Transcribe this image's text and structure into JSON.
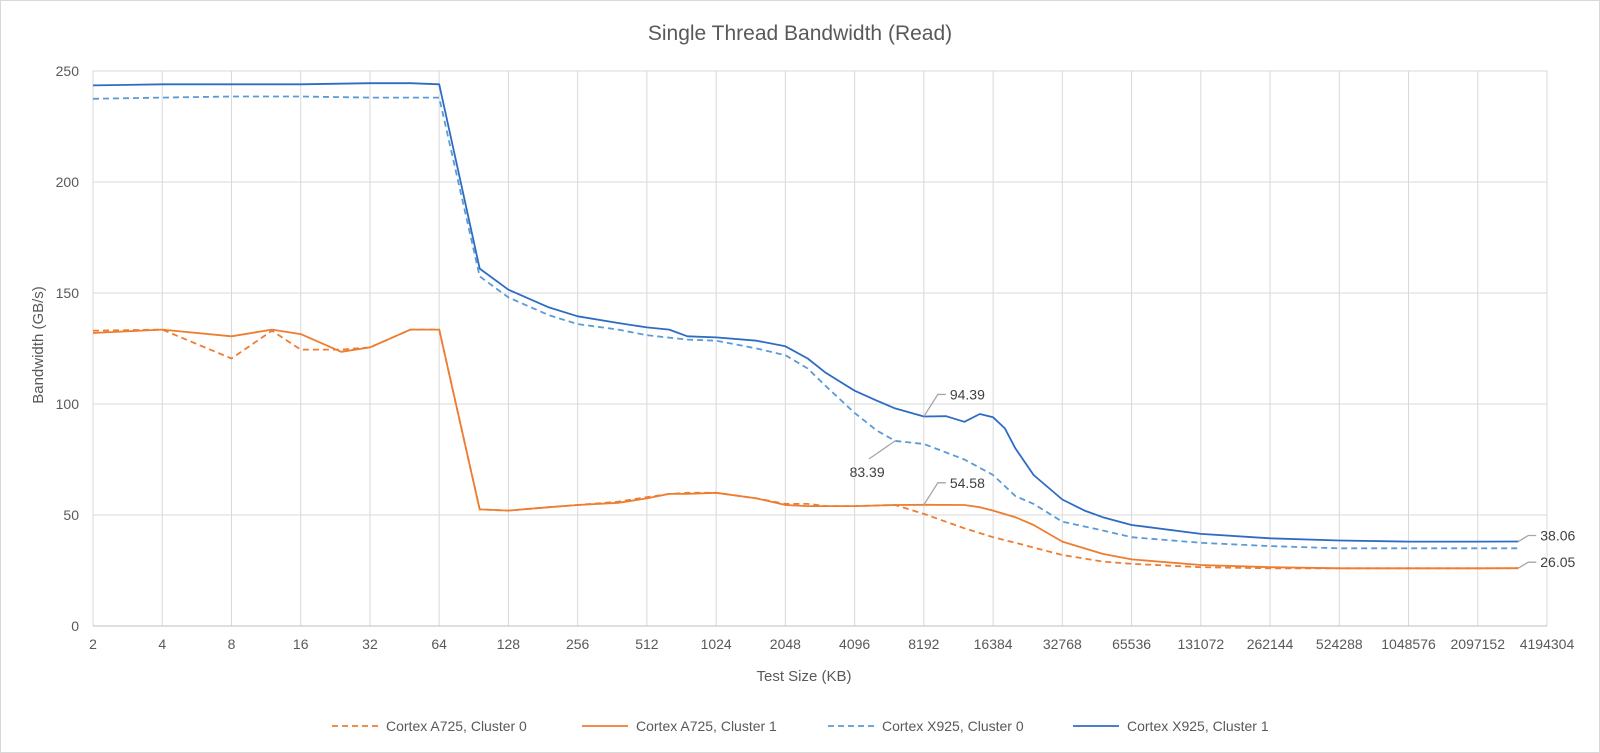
{
  "chart_data": {
    "type": "line",
    "title": "Single Thread Bandwidth (Read)",
    "xlabel": "Test Size (KB)",
    "ylabel": "Bandwidth (GB/s)",
    "x_scale": "log2",
    "xlim": [
      2,
      4194304
    ],
    "ylim": [
      0,
      250
    ],
    "y_ticks": [
      0,
      50,
      100,
      150,
      200,
      250
    ],
    "x_tick_labels": [
      "2",
      "4",
      "8",
      "16",
      "32",
      "64",
      "128",
      "256",
      "512",
      "1024",
      "2048",
      "4096",
      "8192",
      "16384",
      "32768",
      "65536",
      "131072",
      "262144",
      "524288",
      "1048576",
      "2097152",
      "4194304"
    ],
    "grid": true,
    "legend_position": "bottom",
    "series": [
      {
        "name": "Cortex A725, Cluster  0",
        "color": "#ED7D31",
        "dash": "dashed",
        "points": [
          [
            2,
            133
          ],
          [
            4,
            133.5
          ],
          [
            8,
            120.5
          ],
          [
            12,
            133
          ],
          [
            16,
            124.5
          ],
          [
            24,
            124.5
          ],
          [
            32,
            125.5
          ],
          [
            48,
            133.5
          ],
          [
            64,
            133.5
          ],
          [
            96,
            52.5
          ],
          [
            128,
            52
          ],
          [
            192,
            53.5
          ],
          [
            256,
            54.5
          ],
          [
            384,
            56
          ],
          [
            512,
            58
          ],
          [
            640,
            59.5
          ],
          [
            768,
            60
          ],
          [
            1024,
            60
          ],
          [
            1536,
            57.5
          ],
          [
            2048,
            55
          ],
          [
            2560,
            55
          ],
          [
            3072,
            54
          ],
          [
            4096,
            54
          ],
          [
            6144,
            54.5
          ],
          [
            8192,
            50.5
          ],
          [
            12288,
            44
          ],
          [
            16384,
            40
          ],
          [
            20480,
            37.5
          ],
          [
            32768,
            32
          ],
          [
            49152,
            29
          ],
          [
            65536,
            28
          ],
          [
            131072,
            26.5
          ],
          [
            262144,
            26
          ],
          [
            524288,
            26
          ],
          [
            1048576,
            26
          ],
          [
            2097152,
            26
          ],
          [
            3145728,
            26.05
          ]
        ]
      },
      {
        "name": "Cortex A725, Cluster 1",
        "color": "#ED7D31",
        "dash": "solid",
        "points": [
          [
            2,
            132
          ],
          [
            4,
            133.5
          ],
          [
            8,
            130.5
          ],
          [
            12,
            133.5
          ],
          [
            16,
            131.5
          ],
          [
            24,
            123.5
          ],
          [
            32,
            125.5
          ],
          [
            48,
            133.5
          ],
          [
            64,
            133.5
          ],
          [
            96,
            52.5
          ],
          [
            128,
            52
          ],
          [
            192,
            53.5
          ],
          [
            256,
            54.5
          ],
          [
            384,
            55.5
          ],
          [
            512,
            57.5
          ],
          [
            640,
            59.5
          ],
          [
            768,
            59.5
          ],
          [
            1024,
            60
          ],
          [
            1536,
            57.5
          ],
          [
            2048,
            54.5
          ],
          [
            2560,
            54
          ],
          [
            3072,
            54
          ],
          [
            4096,
            54
          ],
          [
            6144,
            54.5
          ],
          [
            8192,
            54.58
          ],
          [
            12288,
            54.5
          ],
          [
            14336,
            53.5
          ],
          [
            16384,
            52
          ],
          [
            20480,
            49
          ],
          [
            24576,
            45.5
          ],
          [
            32768,
            38
          ],
          [
            49152,
            32.5
          ],
          [
            65536,
            30
          ],
          [
            131072,
            27.5
          ],
          [
            262144,
            26.5
          ],
          [
            524288,
            26
          ],
          [
            1048576,
            26
          ],
          [
            2097152,
            26
          ],
          [
            3145728,
            26.05
          ]
        ]
      },
      {
        "name": "Cortex X925, Cluster 0",
        "color": "#5B9BD5",
        "dash": "dashed",
        "points": [
          [
            2,
            237.5
          ],
          [
            4,
            238
          ],
          [
            8,
            238.5
          ],
          [
            16,
            238.5
          ],
          [
            32,
            238
          ],
          [
            64,
            238
          ],
          [
            96,
            157.5
          ],
          [
            128,
            148
          ],
          [
            192,
            140
          ],
          [
            256,
            136
          ],
          [
            384,
            133.5
          ],
          [
            512,
            131
          ],
          [
            768,
            129
          ],
          [
            1024,
            128.5
          ],
          [
            1536,
            125
          ],
          [
            2048,
            122
          ],
          [
            2560,
            116
          ],
          [
            3072,
            108
          ],
          [
            4096,
            96
          ],
          [
            5120,
            88
          ],
          [
            6144,
            83.39
          ],
          [
            8192,
            82
          ],
          [
            12288,
            75
          ],
          [
            16384,
            68
          ],
          [
            20480,
            58.5
          ],
          [
            24576,
            55
          ],
          [
            32768,
            47
          ],
          [
            49152,
            43
          ],
          [
            65536,
            40
          ],
          [
            131072,
            37.5
          ],
          [
            262144,
            36
          ],
          [
            524288,
            35
          ],
          [
            1048576,
            35
          ],
          [
            2097152,
            35
          ],
          [
            3145728,
            35
          ]
        ]
      },
      {
        "name": "Cortex X925, Cluster 1",
        "color": "#2E6CC4",
        "dash": "solid",
        "points": [
          [
            2,
            243.5
          ],
          [
            4,
            244
          ],
          [
            8,
            244
          ],
          [
            16,
            244
          ],
          [
            32,
            244.5
          ],
          [
            48,
            244.5
          ],
          [
            64,
            244
          ],
          [
            96,
            161
          ],
          [
            128,
            151.5
          ],
          [
            192,
            143.5
          ],
          [
            256,
            139.5
          ],
          [
            384,
            136.5
          ],
          [
            512,
            134.5
          ],
          [
            640,
            133.5
          ],
          [
            768,
            130.5
          ],
          [
            1024,
            130
          ],
          [
            1536,
            128.5
          ],
          [
            2048,
            126
          ],
          [
            2560,
            120.5
          ],
          [
            3072,
            114
          ],
          [
            4096,
            106
          ],
          [
            5120,
            101.5
          ],
          [
            6144,
            98
          ],
          [
            8192,
            94.39
          ],
          [
            10240,
            94.5
          ],
          [
            12288,
            92
          ],
          [
            14336,
            95.5
          ],
          [
            16384,
            94
          ],
          [
            18432,
            89
          ],
          [
            20480,
            80
          ],
          [
            24576,
            68
          ],
          [
            32768,
            57
          ],
          [
            40960,
            52
          ],
          [
            49152,
            49
          ],
          [
            65536,
            45.5
          ],
          [
            131072,
            41.5
          ],
          [
            262144,
            39.5
          ],
          [
            524288,
            38.5
          ],
          [
            1048576,
            38
          ],
          [
            2097152,
            38
          ],
          [
            3145728,
            38.06
          ]
        ]
      }
    ],
    "annotations": [
      {
        "text": "94.39",
        "x": 8192,
        "y": 94.39,
        "series": "Cortex X925, Cluster 1",
        "label_pos": "above-right"
      },
      {
        "text": "83.39",
        "x": 6144,
        "y": 83.39,
        "series": "Cortex X925, Cluster 0",
        "label_pos": "below-left"
      },
      {
        "text": "54.58",
        "x": 8192,
        "y": 54.58,
        "series": "Cortex A725, Cluster 1",
        "label_pos": "above-right"
      },
      {
        "text": "38.06",
        "x": 3145728,
        "y": 38.06,
        "series": "Cortex X925, Cluster 1",
        "label_pos": "right"
      },
      {
        "text": "26.05",
        "x": 3145728,
        "y": 26.05,
        "series": "Cortex A725, Cluster 1",
        "label_pos": "right"
      }
    ]
  }
}
